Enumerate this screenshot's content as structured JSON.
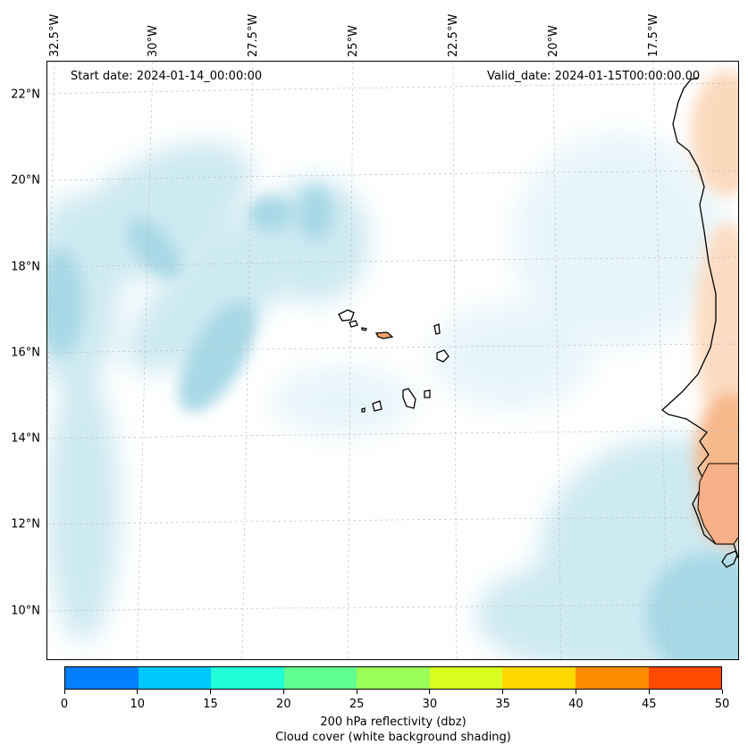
{
  "map": {
    "start_date": "Start date: 2024-01-14_00:00:00",
    "valid_date": "Valid_date: 2024-01-15T00:00:00.00",
    "lat_labels": [
      "22°N",
      "20°N",
      "18°N",
      "16°N",
      "14°N",
      "12°N",
      "10°N"
    ],
    "lon_labels": [
      "32.5°W",
      "30°W",
      "27.5°W",
      "25°W",
      "22.5°W",
      "20°W",
      "17.5°W"
    ],
    "cloud_color": "#a8d8e6",
    "land_heat_color": "#f4a26a",
    "coastline_color": "#000000"
  },
  "colorbar": {
    "ticks": [
      "0",
      "10",
      "15",
      "20",
      "25",
      "30",
      "35",
      "40",
      "45",
      "50"
    ],
    "colors": [
      "#0080ff",
      "#00c8ff",
      "#20ffd8",
      "#60ff90",
      "#98ff58",
      "#d8ff20",
      "#ffd800",
      "#ff8c00",
      "#ff4a00"
    ],
    "label_line1": "200 hPa reflectivity (dbz)",
    "label_line2": "Cloud cover (white background shading)"
  }
}
